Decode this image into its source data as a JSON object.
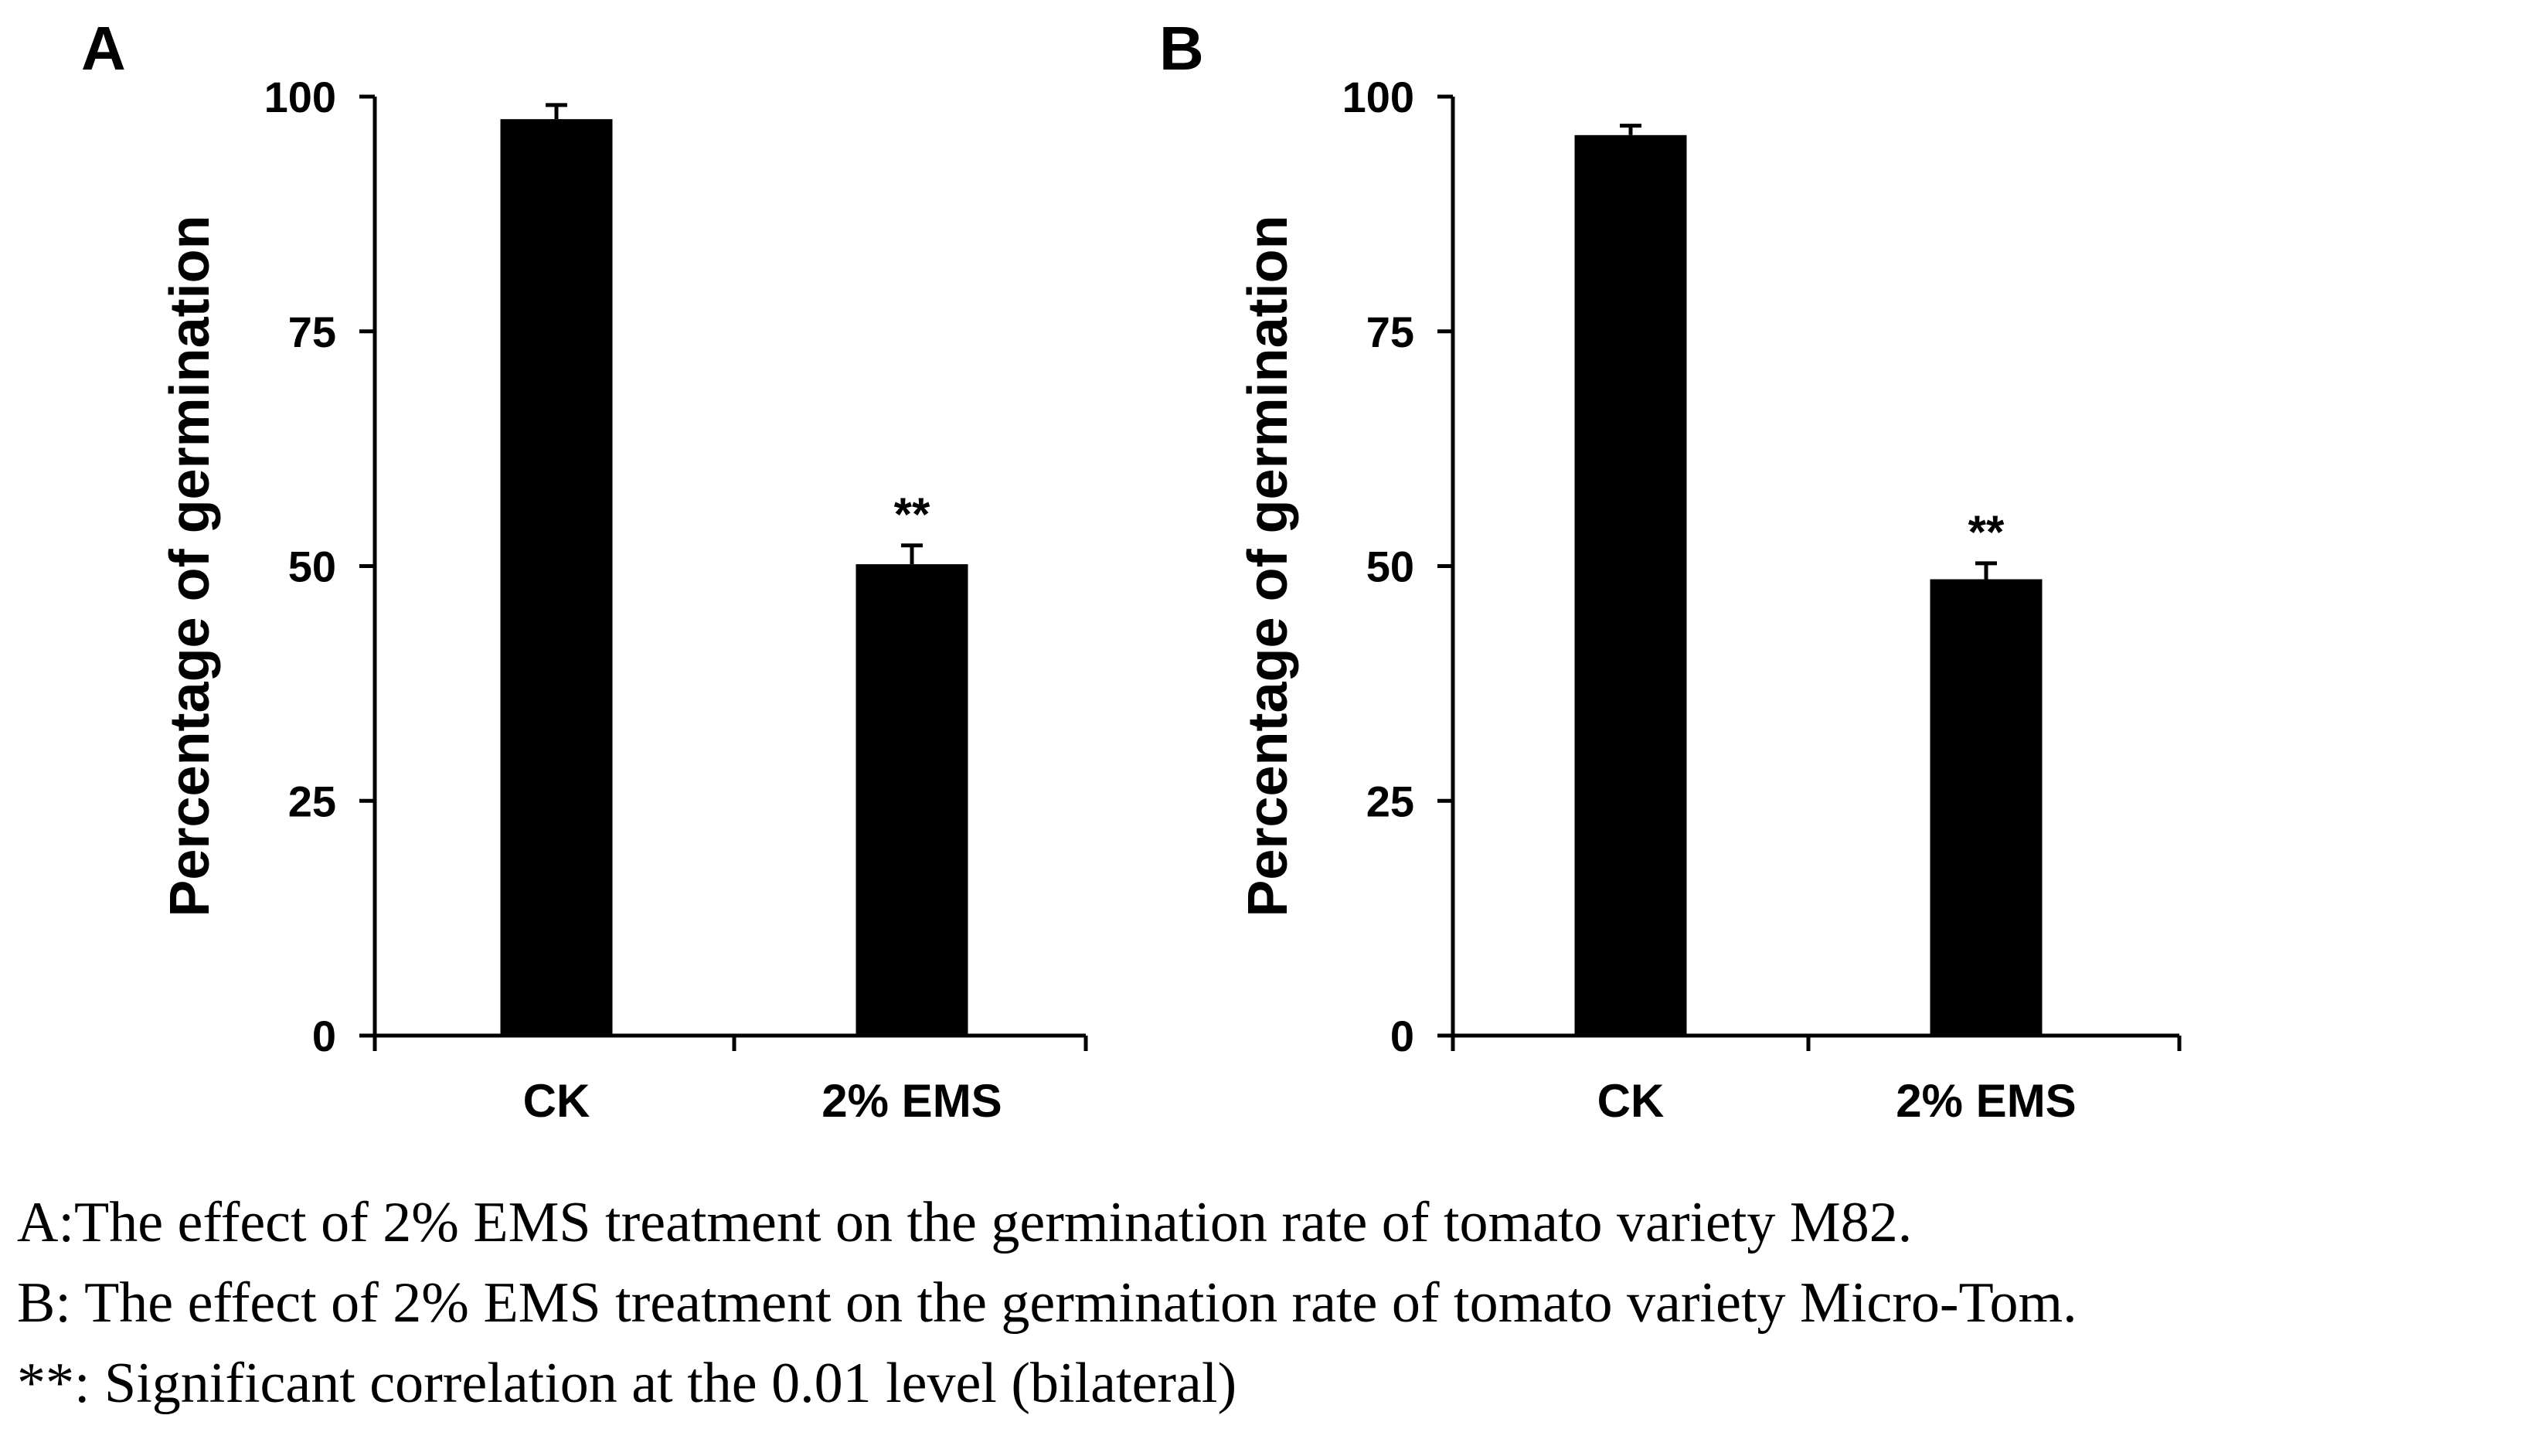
{
  "chart_data": [
    {
      "type": "bar",
      "panel_label": "A",
      "categories": [
        "CK",
        "2% EMS"
      ],
      "values": [
        97.6,
        50.2
      ],
      "errors": [
        1.5,
        2.0
      ],
      "annotations": [
        "",
        "**"
      ],
      "ylabel": "Percentage of germination",
      "ylim": [
        0,
        100
      ],
      "yticks": [
        "0",
        "25",
        "50",
        "75",
        "100"
      ],
      "color": "#000000",
      "grid": false
    },
    {
      "type": "bar",
      "panel_label": "B",
      "categories": [
        "CK",
        "2% EMS"
      ],
      "values": [
        95.9,
        48.6
      ],
      "errors": [
        1.0,
        1.7
      ],
      "annotations": [
        "",
        "**"
      ],
      "ylabel": "Percentage of germination",
      "ylim": [
        0,
        100
      ],
      "yticks": [
        "0",
        "25",
        "50",
        "75",
        "100"
      ],
      "color": "#000000",
      "grid": false
    }
  ],
  "caption": {
    "line_a": "A:The effect of 2% EMS treatment on the germination rate of tomato variety M82.",
    "line_b": "B: The effect of 2% EMS treatment on the germination rate of tomato variety Micro-Tom.",
    "line_sig": "**: Significant correlation at the 0.01 level (bilateral)"
  }
}
